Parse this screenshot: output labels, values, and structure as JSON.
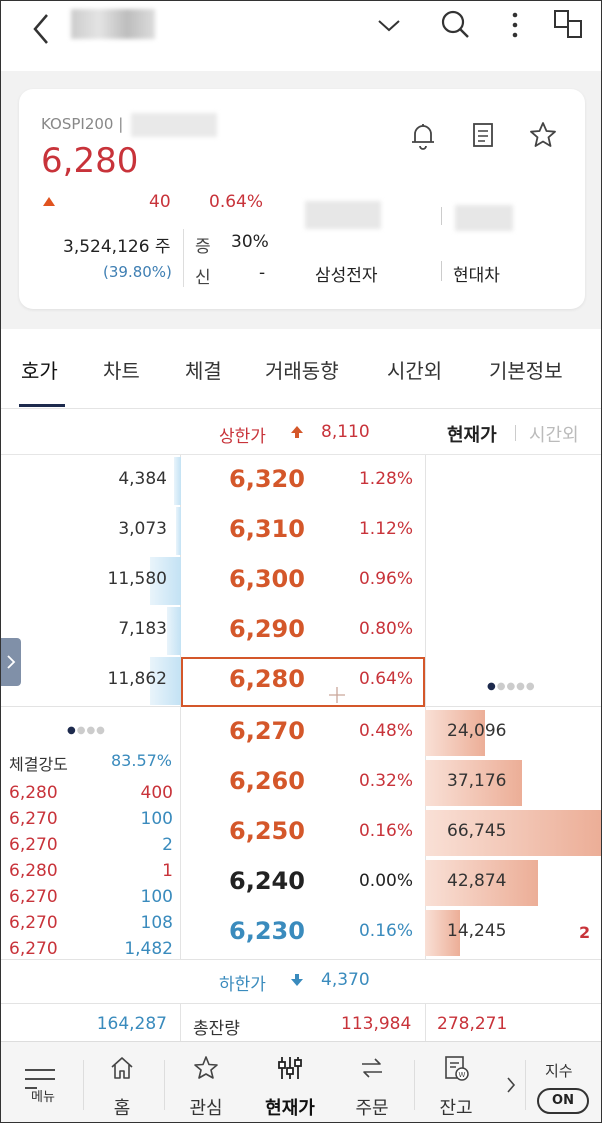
{
  "topbar": {
    "icons": [
      "back-icon",
      "chevron-down-icon",
      "search-icon",
      "more-vertical-icon",
      "multi-window-icon"
    ]
  },
  "summary": {
    "market": "KOSPI200 |",
    "price": "6,280",
    "change_arrow": "up-triangle",
    "change": "40",
    "change_pct": "0.64%",
    "volume": "3,524,126 주",
    "volume_ratio": "(39.80%)",
    "margin_label": "증",
    "margin_value": "30%",
    "credit_label": "신",
    "credit_value": "-",
    "related_1": "삼성전자",
    "related_2": "현대차",
    "icons": [
      "bell-icon",
      "memo-icon",
      "star-icon"
    ]
  },
  "tabs": [
    {
      "label": "호가",
      "active": true
    },
    {
      "label": "차트"
    },
    {
      "label": "체결"
    },
    {
      "label": "거래동향"
    },
    {
      "label": "시간외"
    },
    {
      "label": "기본정보"
    }
  ],
  "orderbook": {
    "upper_label": "상한가",
    "upper_value": "8,110",
    "lower_label": "하한가",
    "lower_value": "4,370",
    "view_current": "현재가",
    "view_after": "시간외",
    "asks": [
      {
        "qty": "4,384",
        "price": "6,320",
        "pct": "1.28%",
        "level": 0.04
      },
      {
        "qty": "3,073",
        "price": "6,310",
        "pct": "1.12%",
        "level": 0.03
      },
      {
        "qty": "11,580",
        "price": "6,300",
        "pct": "0.96%",
        "level": 0.17
      },
      {
        "qty": "7,183",
        "price": "6,290",
        "pct": "0.80%",
        "level": 0.08
      },
      {
        "qty": "11,862",
        "price": "6,280",
        "pct": "0.64%",
        "level": 0.17
      }
    ],
    "bids": [
      {
        "qty": "24,096",
        "price": "6,270",
        "pct": "0.48%",
        "level": 0.34,
        "color": "up"
      },
      {
        "qty": "37,176",
        "price": "6,260",
        "pct": "0.32%",
        "level": 0.55,
        "color": "up"
      },
      {
        "qty": "66,745",
        "price": "6,250",
        "pct": "0.16%",
        "level": 1.0,
        "color": "up"
      },
      {
        "qty": "42,874",
        "price": "6,240",
        "pct": "0.00%",
        "level": 0.64,
        "color": "flat"
      },
      {
        "qty": "14,245",
        "price": "6,230",
        "pct": "0.16%",
        "level": 0.2,
        "color": "blue"
      }
    ],
    "bid_extra": "2",
    "total_ask": "164,287",
    "total_label": "총잔량",
    "total_bid": "113,984",
    "total_bid_after": "278,271"
  },
  "executions": {
    "strength_label": "체결강도",
    "strength_value": "83.57%",
    "rows": [
      {
        "price": "6,280",
        "qty": "400",
        "qty_color": "red"
      },
      {
        "price": "6,270",
        "qty": "100",
        "qty_color": "blue"
      },
      {
        "price": "6,270",
        "qty": "2",
        "qty_color": "blue"
      },
      {
        "price": "6,280",
        "qty": "1",
        "qty_color": "red"
      },
      {
        "price": "6,270",
        "qty": "100",
        "qty_color": "blue"
      },
      {
        "price": "6,270",
        "qty": "108",
        "qty_color": "blue"
      },
      {
        "price": "6,270",
        "qty": "1,482",
        "qty_color": "blue"
      }
    ]
  },
  "nav": {
    "menu_label": "메뉴",
    "items": [
      {
        "label": "홈",
        "icon": "home-icon"
      },
      {
        "label": "관심",
        "icon": "star-icon"
      },
      {
        "label": "현재가",
        "icon": "sliders-icon",
        "active": true
      },
      {
        "label": "주문",
        "icon": "swap-icon"
      },
      {
        "label": "잔고",
        "icon": "balance-icon"
      }
    ],
    "index_label": "지수",
    "index_toggle": "ON"
  }
}
